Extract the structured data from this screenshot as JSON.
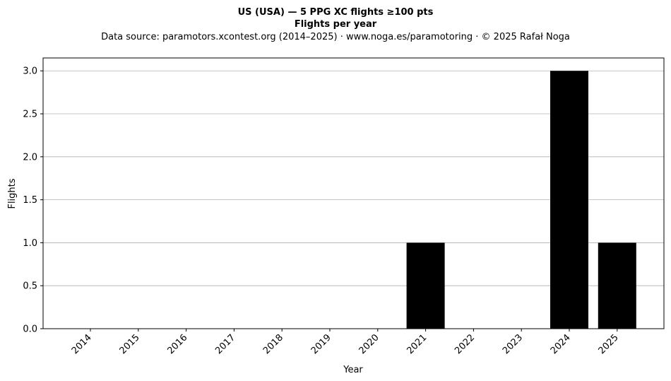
{
  "chart_data": {
    "type": "bar",
    "title": "US (USA)  —  5 PPG XC flights ≥100 pts",
    "subtitle": "Flights per year",
    "source_note": "Data source: paramotors.xcontest.org (2014–2025)  ·  www.noga.es/paramotoring  ·  © 2025 Rafał Noga",
    "xlabel": "Year",
    "ylabel": "Flights",
    "categories": [
      "2014",
      "2015",
      "2016",
      "2017",
      "2018",
      "2019",
      "2020",
      "2021",
      "2022",
      "2023",
      "2024",
      "2025"
    ],
    "values": [
      0,
      0,
      0,
      0,
      0,
      0,
      0,
      1,
      0,
      0,
      3,
      1
    ],
    "ylim": [
      0,
      3.15
    ],
    "yticks": [
      "0.0",
      "0.5",
      "1.0",
      "1.5",
      "2.0",
      "2.5",
      "3.0"
    ],
    "ytick_values": [
      0,
      0.5,
      1,
      1.5,
      2,
      2.5,
      3
    ],
    "grid": "y",
    "bar_color": "#000000",
    "grid_color": "#b0b0b0"
  }
}
